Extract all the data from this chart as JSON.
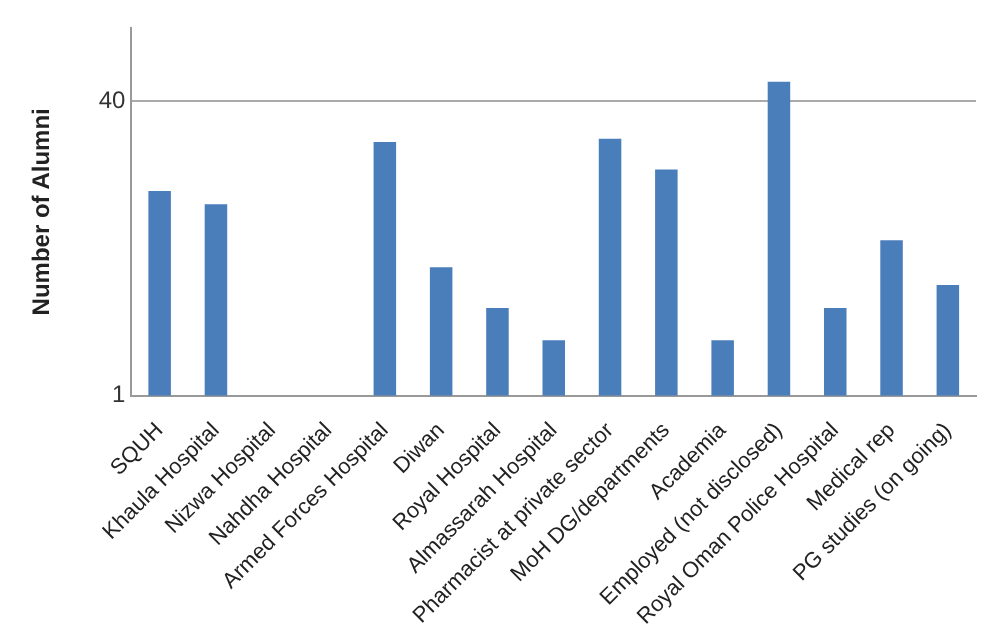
{
  "chart_data": {
    "type": "bar",
    "ylabel": "Number of Alumni",
    "categories": [
      "SQUH",
      "Khaula Hospital",
      "Nizwa Hospital",
      "Nahdha Hospital",
      "Armed Forces Hospital",
      "Diwan",
      "Royal Hospital",
      "Almassarah Hospital",
      "Pharmacist at private sector",
      "MoH DG/departments",
      "Academia",
      "Employed (not disclosed)",
      "Royal Oman Police Hospital",
      "Medical rep",
      "PG studies (on going)"
    ],
    "values": [
      13,
      11,
      1,
      1,
      24,
      5,
      3,
      2,
      25,
      17,
      2,
      51,
      3,
      7,
      4
    ],
    "color": "#4a7ebb",
    "log": "y",
    "ylim": [
      1,
      100
    ],
    "yticks": [
      1,
      40
    ],
    "grid": "y",
    "legend": false
  }
}
